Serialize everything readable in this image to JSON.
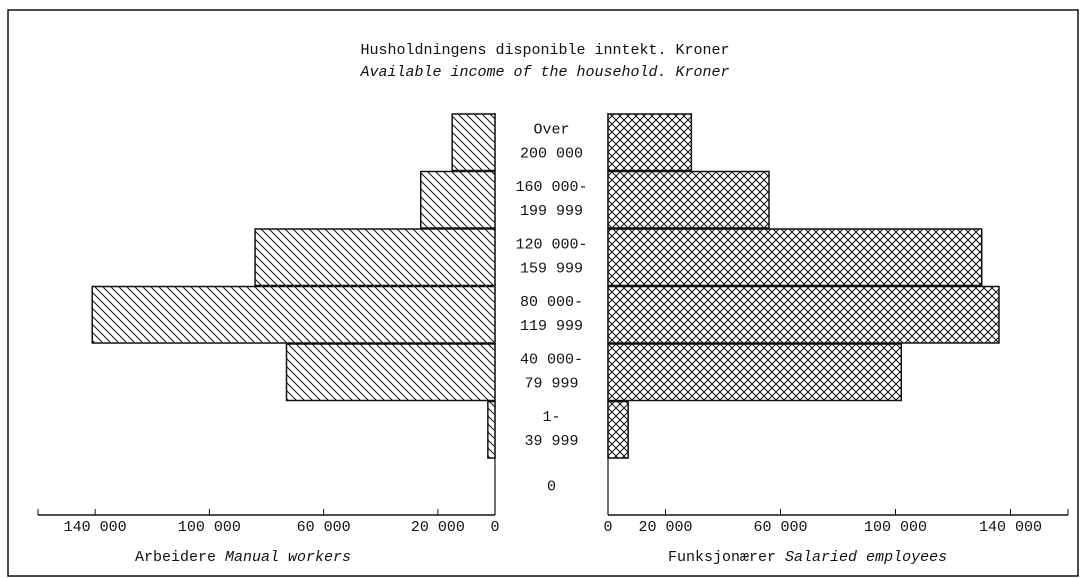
{
  "chart_data": {
    "type": "butterfly-bar",
    "title": "Husholdningens disponible inntekt. Kroner",
    "subtitle": "Available income of the household. Kroner",
    "categories": [
      [
        "Over",
        "200 000"
      ],
      [
        "160 000-",
        "199 999"
      ],
      [
        "120 000-",
        "159 999"
      ],
      [
        "80 000-",
        "119 999"
      ],
      [
        "40 000-",
        "79 999"
      ],
      [
        "1-",
        "39 999"
      ],
      [
        "0"
      ]
    ],
    "series": [
      {
        "name": "Arbeidere",
        "name_en": "Manual workers",
        "side": "left",
        "pattern": "hatch",
        "color": "#111111",
        "values": [
          15000,
          26000,
          84000,
          141000,
          73000,
          2500,
          0
        ]
      },
      {
        "name": "Funksjonærer",
        "name_en": "Salaried employees",
        "side": "right",
        "pattern": "crosshatch",
        "color": "#111111",
        "values": [
          29000,
          56000,
          130000,
          136000,
          102000,
          7000,
          0
        ]
      }
    ],
    "xlim": [
      0,
      160000
    ],
    "xticks": [
      0,
      {
        "value": 20000,
        "label": "20 000"
      },
      {
        "value": 60000,
        "label": "60 000"
      },
      {
        "value": 100000,
        "label": "100 000"
      },
      {
        "value": 140000,
        "label": "140 000"
      }
    ]
  }
}
